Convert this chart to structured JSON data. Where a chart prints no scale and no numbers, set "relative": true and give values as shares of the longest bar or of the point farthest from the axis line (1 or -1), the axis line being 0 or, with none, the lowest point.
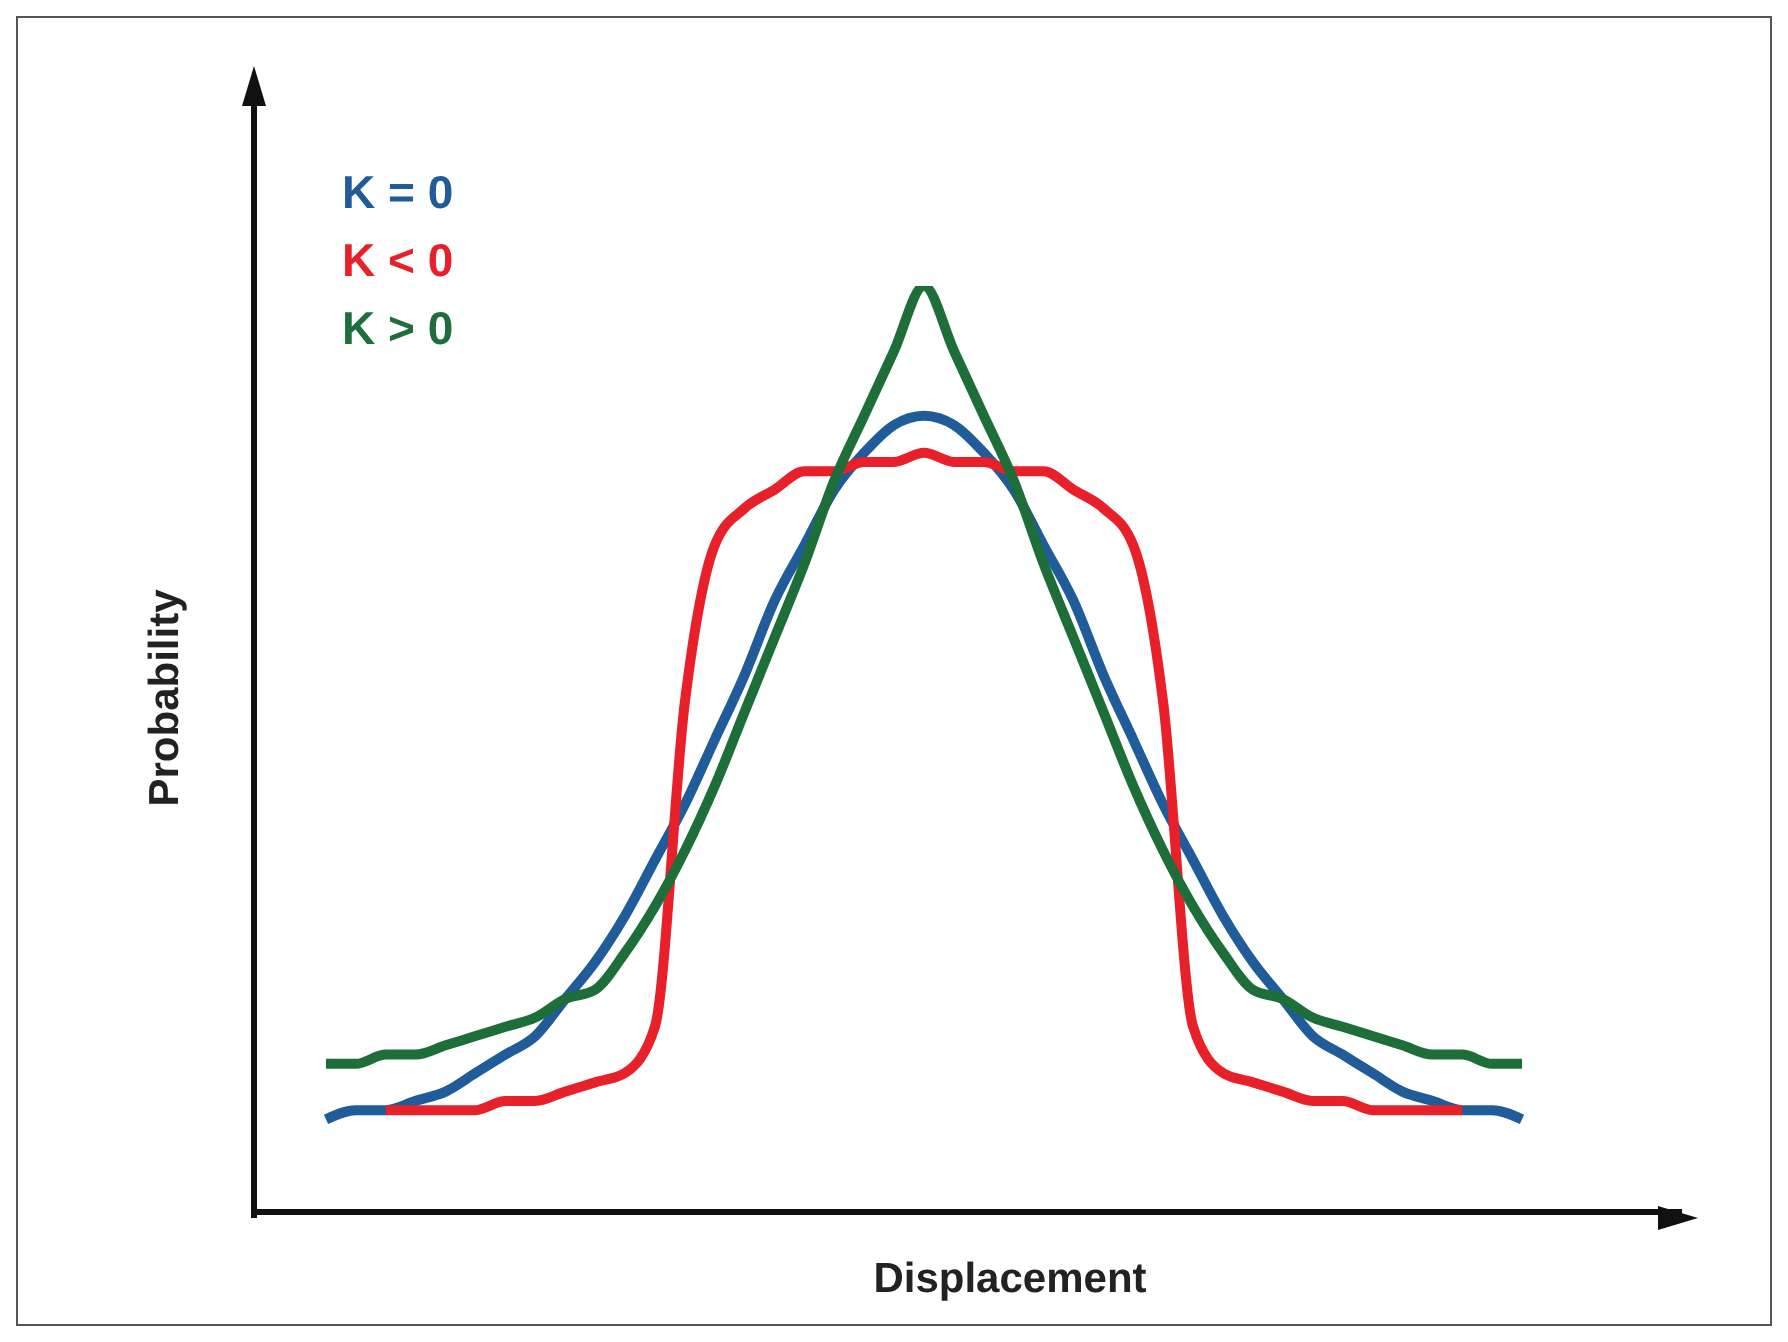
{
  "chart_data": {
    "type": "line",
    "relative": true,
    "xlabel": "Displacement",
    "ylabel": "Probability",
    "legend": "top left",
    "categories": [
      null,
      null,
      null,
      null,
      null,
      null,
      null,
      null,
      null,
      null,
      null,
      null,
      null,
      null,
      null,
      null,
      null,
      null,
      null,
      null,
      null,
      null,
      null,
      null,
      null,
      null,
      null,
      null,
      null,
      null,
      null,
      null,
      null,
      null,
      null,
      null,
      null,
      null,
      null,
      null,
      null
    ],
    "series": [
      {
        "name": "K = 0",
        "color": "#1f5c99",
        "values": [
          0.1,
          0.11,
          0.11,
          0.12,
          0.13,
          0.15,
          0.17,
          0.19,
          0.23,
          0.27,
          0.32,
          0.38,
          0.44,
          0.51,
          0.58,
          0.66,
          0.72,
          0.78,
          0.82,
          0.85,
          0.86,
          0.85,
          0.82,
          0.78,
          0.72,
          0.66,
          0.58,
          0.51,
          0.44,
          0.38,
          0.32,
          0.27,
          0.23,
          0.19,
          0.17,
          0.15,
          0.13,
          0.12,
          0.11,
          0.11,
          0.1
        ]
      },
      {
        "name": "K < 0",
        "color": "#e8202a",
        "values": [
          null,
          null,
          0.11,
          0.11,
          0.11,
          0.11,
          0.12,
          0.12,
          0.13,
          0.14,
          0.15,
          0.2,
          0.55,
          0.72,
          0.76,
          0.78,
          0.8,
          0.8,
          0.81,
          0.81,
          0.82,
          0.81,
          0.81,
          0.8,
          0.8,
          0.78,
          0.76,
          0.72,
          0.55,
          0.2,
          0.15,
          0.14,
          0.13,
          0.12,
          0.12,
          0.11,
          0.11,
          0.11,
          0.11,
          null,
          null
        ]
      },
      {
        "name": "K > 0",
        "color": "#1e6e3a",
        "values": [
          0.16,
          0.16,
          0.17,
          0.17,
          0.18,
          0.19,
          0.2,
          0.21,
          0.23,
          0.24,
          0.28,
          0.33,
          0.39,
          0.46,
          0.54,
          0.62,
          0.7,
          0.79,
          0.86,
          0.93,
          1,
          0.93,
          0.86,
          0.79,
          0.7,
          0.62,
          0.54,
          0.46,
          0.39,
          0.33,
          0.28,
          0.24,
          0.23,
          0.21,
          0.2,
          0.19,
          0.18,
          0.17,
          0.17,
          0.16,
          0.16
        ]
      }
    ]
  }
}
